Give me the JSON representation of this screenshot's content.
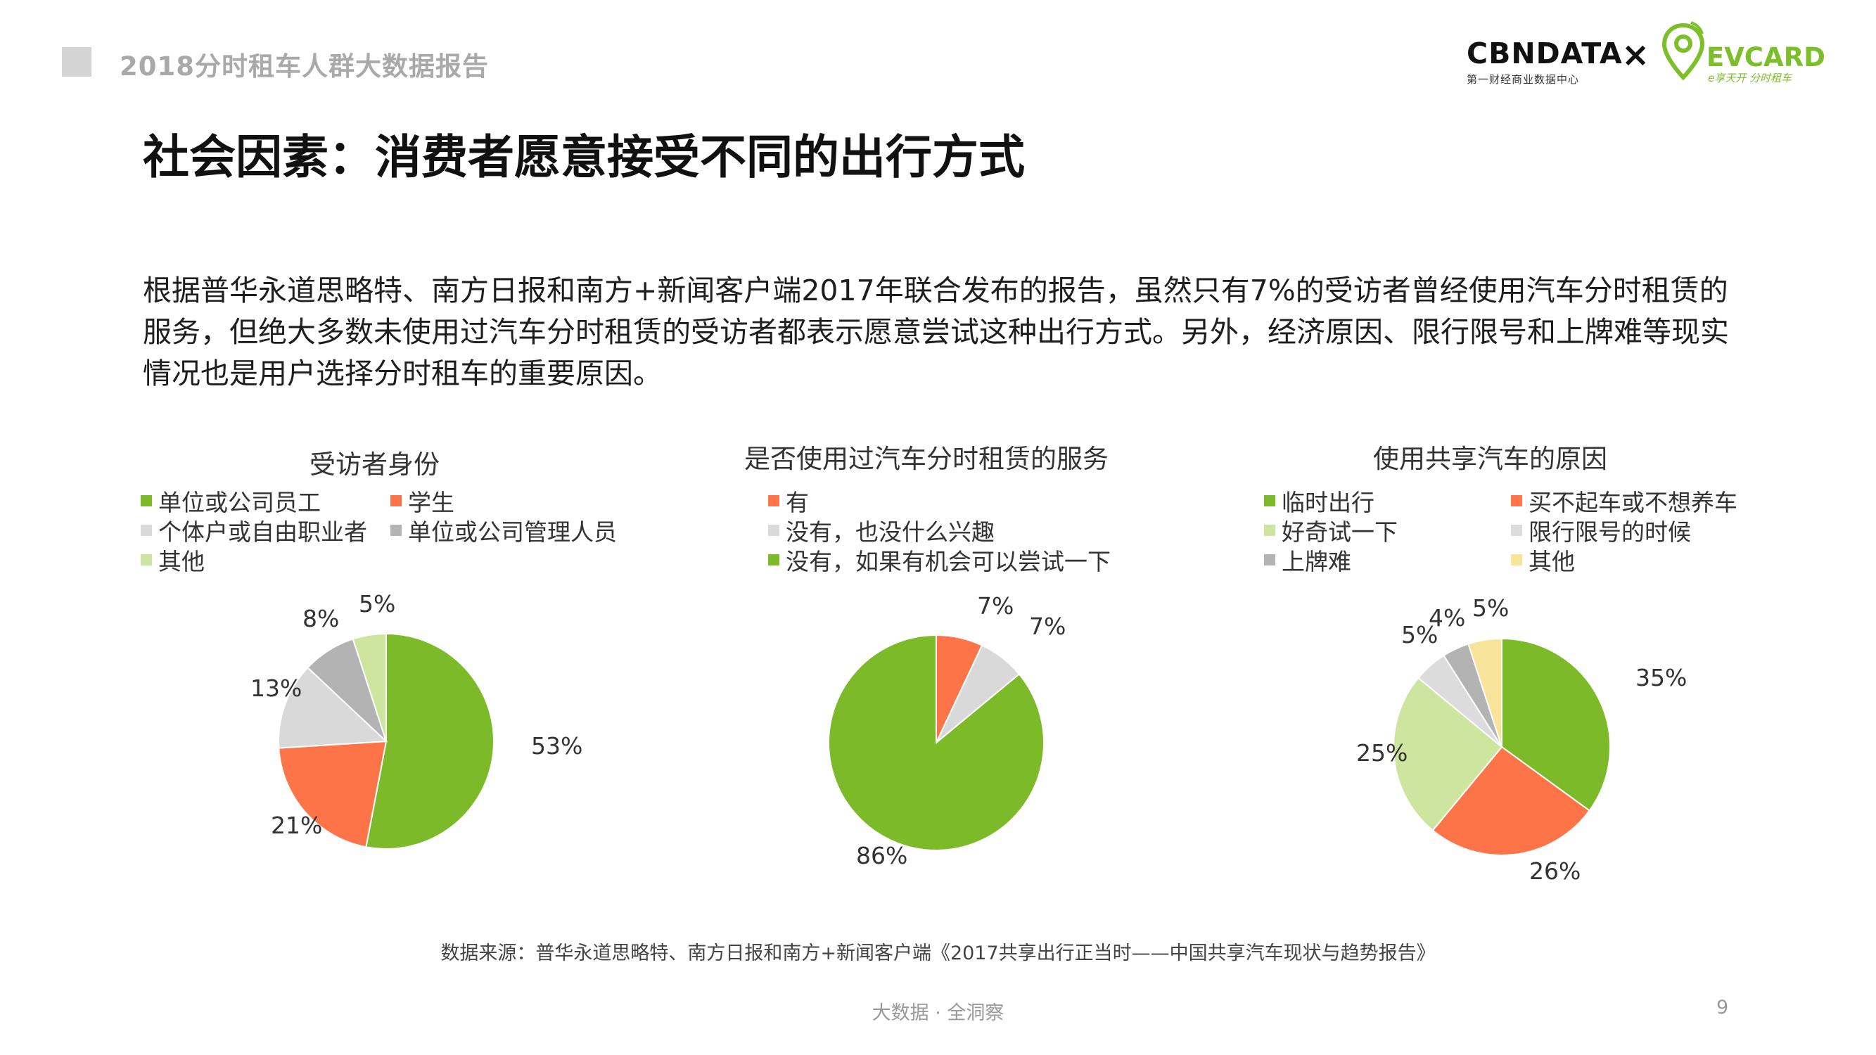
{
  "header": {
    "report_title": "2018分时租车人群大数据报告",
    "logo_cbn": "CBNDATA",
    "logo_cbn_sub": "第一财经商业数据中心",
    "logo_separator": "×",
    "logo_ev": "EVCARD",
    "logo_ev_tag": "e享天开 分时租车"
  },
  "page": {
    "title": "社会因素：消费者愿意接受不同的出行方式",
    "body": "根据普华永道思略特、南方日报和南方+新闻客户端2017年联合发布的报告，虽然只有7%的受访者曾经使用汽车分时租赁的服务，但绝大多数未使用过汽车分时租赁的受访者都表示愿意尝试这种出行方式。另外，经济原因、限行限号和上牌难等现实情况也是用户选择分时租车的重要原因。",
    "source": "数据来源：普华永道思略特、南方日报和南方+新闻客户端《2017共享出行正当时——中国共享汽车现状与趋势报告》",
    "footer": "大数据 · 全洞察",
    "page_number": "9"
  },
  "chart_data": [
    {
      "type": "pie",
      "title": "受访者身份",
      "labels": [
        "单位或公司员工",
        "学生",
        "个体户或自由职业者",
        "单位或公司管理人员",
        "其他"
      ],
      "values": [
        53,
        21,
        13,
        8,
        5
      ],
      "value_labels": [
        "53%",
        "21%",
        "13%",
        "8%",
        "5%"
      ],
      "colors": [
        "#7dba29",
        "#fd7449",
        "#d9d9d9",
        "#b3b3b3",
        "#cde59e"
      ],
      "legend": "top"
    },
    {
      "type": "pie",
      "title": "是否使用过汽车分时租赁的服务",
      "labels": [
        "有",
        "没有，也没什么兴趣",
        "没有，如果有机会可以尝试一下"
      ],
      "values": [
        7,
        7,
        86
      ],
      "value_labels": [
        "7%",
        "7%",
        "86%"
      ],
      "colors": [
        "#fd7449",
        "#d9d9d9",
        "#7dba29"
      ],
      "legend": "top"
    },
    {
      "type": "pie",
      "title": "使用共享汽车的原因",
      "labels": [
        "临时出行",
        "买不起车或不想养车",
        "好奇试一下",
        "限行限号的时候",
        "上牌难",
        "其他"
      ],
      "values": [
        35,
        26,
        25,
        5,
        4,
        5
      ],
      "value_labels": [
        "35%",
        "26%",
        "25%",
        "5%",
        "4%",
        "5%"
      ],
      "colors": [
        "#7dba29",
        "#fd7449",
        "#cde59e",
        "#dcdcdc",
        "#b3b3b3",
        "#f7e39a"
      ],
      "legend": "top"
    }
  ]
}
